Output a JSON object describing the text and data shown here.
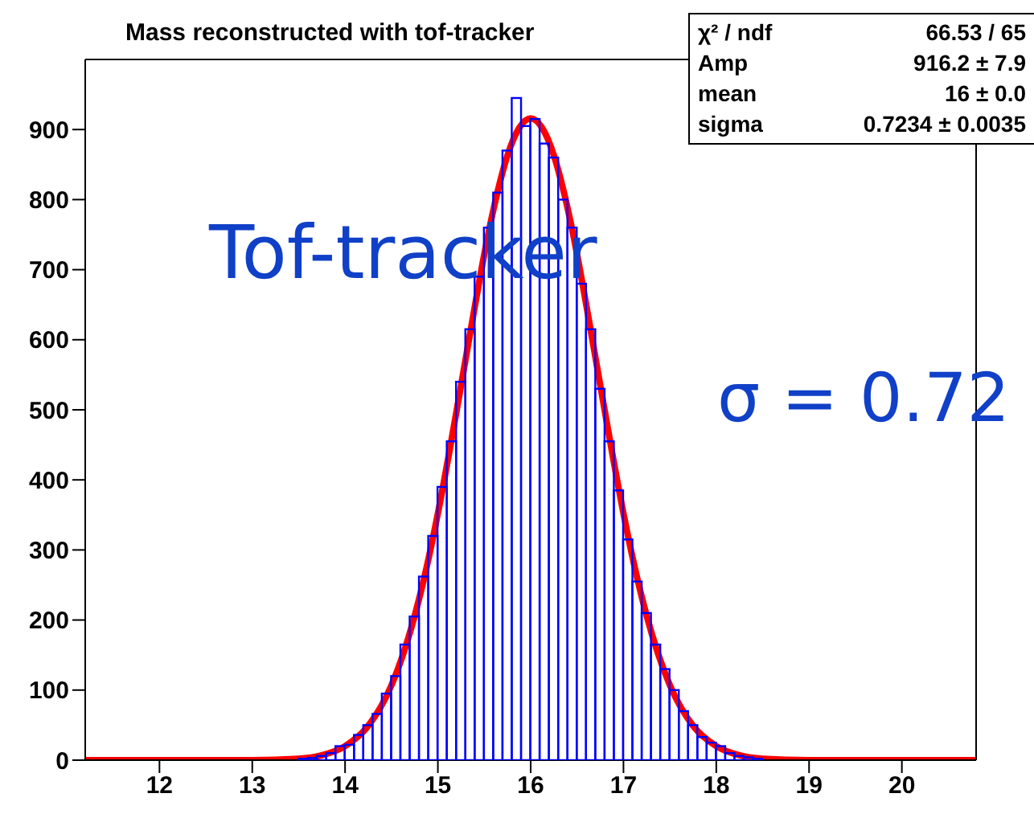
{
  "chart_data": {
    "type": "histogram",
    "title": "Mass reconstructed with tof-tracker",
    "bins": [
      11.2,
      11.3,
      11.4,
      11.5,
      11.6,
      11.7,
      11.8,
      11.9,
      12.0,
      12.1,
      12.2,
      12.3,
      12.4,
      12.5,
      12.6,
      12.7,
      12.8,
      12.9,
      13.0,
      13.1,
      13.2,
      13.3,
      13.4,
      13.5,
      13.6,
      13.7,
      13.8,
      13.9,
      14.0,
      14.1,
      14.2,
      14.3,
      14.4,
      14.5,
      14.6,
      14.7,
      14.8,
      14.9,
      15.0,
      15.1,
      15.2,
      15.3,
      15.4,
      15.5,
      15.6,
      15.7,
      15.8,
      15.9,
      16.0,
      16.1,
      16.2,
      16.3,
      16.4,
      16.5,
      16.6,
      16.7,
      16.8,
      16.9,
      17.0,
      17.1,
      17.2,
      17.3,
      17.4,
      17.5,
      17.6,
      17.7,
      17.8,
      17.9,
      18.0,
      18.1,
      18.2,
      18.3,
      18.4,
      18.5,
      18.6,
      18.7,
      18.8,
      18.9,
      19.0,
      19.1,
      19.2,
      19.3,
      19.4,
      19.5,
      19.6,
      19.7,
      19.8,
      19.9,
      20.0,
      20.1,
      20.2,
      20.3,
      20.4,
      20.5,
      20.6,
      20.7,
      20.8
    ],
    "values": [
      0,
      0,
      0,
      0,
      0,
      0,
      0,
      0,
      0,
      0,
      0,
      0,
      0,
      0,
      0,
      0,
      0,
      0,
      0,
      0,
      0,
      0,
      0,
      2,
      3,
      6,
      10,
      20,
      22,
      36,
      50,
      66,
      95,
      120,
      165,
      205,
      262,
      320,
      390,
      455,
      540,
      615,
      690,
      760,
      810,
      870,
      945,
      905,
      915,
      880,
      860,
      800,
      760,
      680,
      615,
      530,
      455,
      385,
      315,
      255,
      210,
      165,
      130,
      100,
      70,
      50,
      33,
      25,
      20,
      10,
      6,
      4,
      2,
      0,
      0,
      0,
      0,
      0,
      0,
      0,
      0,
      0,
      0,
      0,
      0,
      0,
      0,
      0,
      0,
      0,
      0,
      0,
      0,
      0,
      0,
      0
    ],
    "color": "#0000ff",
    "series": [
      {
        "type": "line",
        "color": "#ff0000",
        "x": [
          11.2,
          12,
          13,
          13.5,
          13.75,
          14,
          14.25,
          14.5,
          14.75,
          14.875,
          15,
          15.125,
          15.25,
          15.375,
          15.5,
          15.625,
          15.75,
          15.875,
          16,
          16.125,
          16.25,
          16.375,
          16.5,
          16.625,
          16.75,
          16.875,
          17,
          17.125,
          17.25,
          17.5,
          17.75,
          18,
          18.25,
          18.5,
          19,
          20,
          20.8
        ],
        "values": [
          0,
          0,
          0,
          2,
          7,
          20,
          49,
          107,
          206,
          273,
          352,
          441,
          535,
          630,
          722,
          801,
          863,
          902,
          916,
          902,
          863,
          801,
          722,
          630,
          535,
          441,
          352,
          273,
          206,
          107,
          49,
          20,
          7,
          2,
          0,
          0,
          0
        ]
      }
    ],
    "xlim": [
      11.2,
      20.8
    ],
    "xticks": [
      12,
      13,
      14,
      15,
      16,
      17,
      18,
      19,
      20
    ],
    "ylim": [
      0,
      1000
    ],
    "yticks": [
      0,
      100,
      200,
      300,
      400,
      500,
      600,
      700,
      800,
      900
    ],
    "grid": false,
    "legend": false,
    "marker": "none",
    "line_style": "solid",
    "annotations": [
      "Tof-tracker",
      "σ = 0.72",
      "χ² / ndf",
      "66.53 / 65",
      "Amp",
      "916.2 ± 7.9",
      "mean",
      "16 ± 0.0",
      "sigma",
      "0.7234 ± 0.0035"
    ]
  }
}
